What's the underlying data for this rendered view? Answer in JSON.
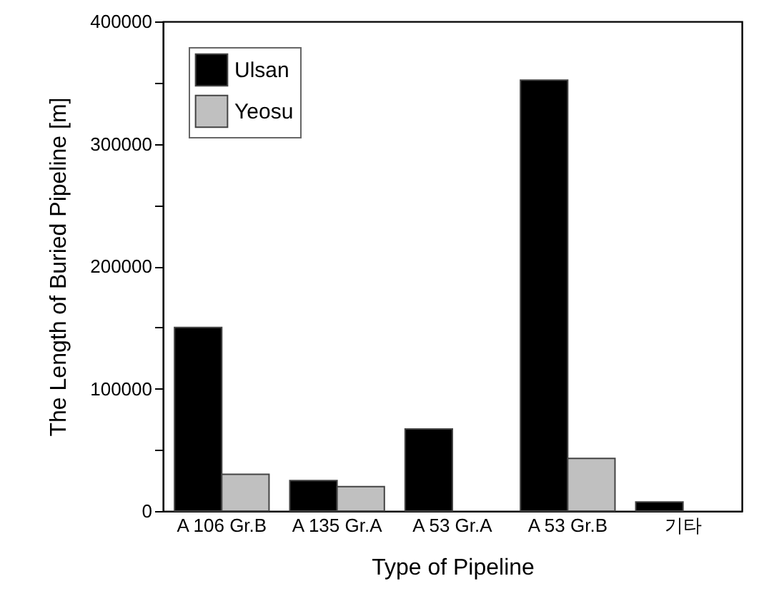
{
  "chart_data": {
    "type": "bar",
    "xlabel": "Type of Pipeline",
    "ylabel": "The Length of Buried Pipeline [m]",
    "categories": [
      "A 106 Gr.B",
      "A 135 Gr.A",
      "A 53 Gr.A",
      "A 53 Gr.B",
      "기타"
    ],
    "series": [
      {
        "name": "Ulsan",
        "color": "#000000",
        "values": [
          150000,
          25000,
          67000,
          352000,
          7500
        ]
      },
      {
        "name": "Yeosu",
        "color": "#c0c0c0",
        "values": [
          30000,
          20000,
          null,
          43000,
          null
        ]
      }
    ],
    "ylim": [
      0,
      400000
    ],
    "yticks": [
      0,
      {
        "value": 50000,
        "label": null
      },
      100000,
      {
        "value": 150000,
        "label": null
      },
      200000,
      {
        "value": 250000,
        "label": null
      },
      300000,
      {
        "value": 350000,
        "label": null
      },
      400000
    ],
    "legend": "top left",
    "grid": false
  }
}
